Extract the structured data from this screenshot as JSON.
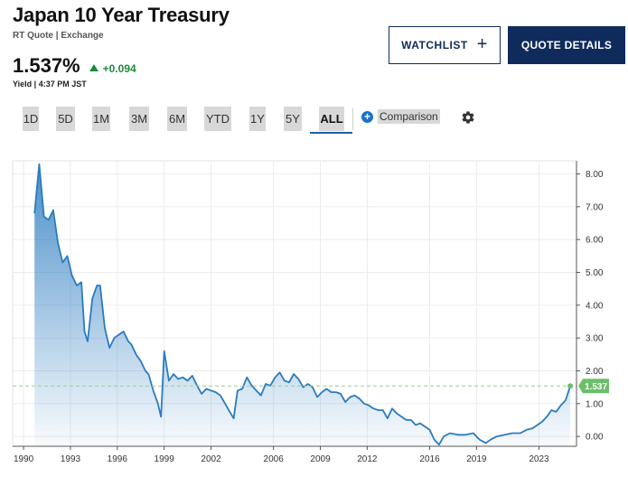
{
  "header": {
    "title": "Japan 10 Year Treasury",
    "meta": "RT Quote | Exchange",
    "price": "1.537%",
    "change": "+0.094",
    "yield_line": "Yield | 4:37 PM JST"
  },
  "actions": {
    "watchlist_label": "WATCHLIST",
    "quote_details_label": "QUOTE DETAILS"
  },
  "ranges": [
    {
      "label": "1D",
      "active": false
    },
    {
      "label": "5D",
      "active": false
    },
    {
      "label": "1M",
      "active": false
    },
    {
      "label": "3M",
      "active": false
    },
    {
      "label": "6M",
      "active": false
    },
    {
      "label": "YTD",
      "active": false
    },
    {
      "label": "1Y",
      "active": false
    },
    {
      "label": "5Y",
      "active": false
    },
    {
      "label": "ALL",
      "active": true
    }
  ],
  "comparison_label": "Comparison",
  "colors": {
    "line": "#2a7bc0",
    "accent_navy": "#0f2b5b",
    "positive": "#1e8a3c",
    "last_value": "#6cbf6a"
  },
  "chart_data": {
    "type": "area",
    "title": "",
    "xlabel": "",
    "ylabel": "",
    "x_ticks": [
      "1990",
      "1993",
      "1996",
      "1999",
      "2002",
      "2006",
      "2009",
      "2012",
      "2016",
      "2019",
      "2023"
    ],
    "y_ticks": [
      "8.00",
      "7.00",
      "6.00",
      "5.00",
      "4.00",
      "3.00",
      "2.00",
      "1.00",
      "0.00"
    ],
    "ylim": [
      -0.3,
      8.4
    ],
    "xlim": [
      1989.3,
      2025.4
    ],
    "last_value_label": "1.537",
    "last_value": 1.537,
    "series": [
      {
        "x": [
          1990.7,
          1991.0,
          1991.3,
          1991.6,
          1991.9,
          1992.2,
          1992.5,
          1992.8,
          1993.1,
          1993.4,
          1993.7,
          1993.9,
          1994.1,
          1994.4,
          1994.7,
          1994.9,
          1995.2,
          1995.5,
          1995.8,
          1996.1,
          1996.4,
          1996.7,
          1996.9,
          1997.2,
          1997.5,
          1997.8,
          1998.0,
          1998.3,
          1998.6,
          1998.8,
          1999.0,
          1999.3,
          1999.6,
          1999.9,
          2000.2,
          2000.5,
          2000.8,
          2001.1,
          2001.4,
          2001.7,
          2002.0,
          2002.3,
          2002.6,
          2002.9,
          2003.2,
          2003.45,
          2003.7,
          2004.0,
          2004.3,
          2004.6,
          2004.9,
          2005.2,
          2005.5,
          2005.8,
          2006.1,
          2006.4,
          2006.7,
          2007.0,
          2007.3,
          2007.6,
          2007.9,
          2008.2,
          2008.5,
          2008.8,
          2009.1,
          2009.4,
          2009.7,
          2010.0,
          2010.3,
          2010.6,
          2010.9,
          2011.2,
          2011.5,
          2011.8,
          2012.1,
          2012.4,
          2012.7,
          2013.0,
          2013.3,
          2013.6,
          2013.9,
          2014.2,
          2014.5,
          2014.8,
          2015.1,
          2015.4,
          2015.7,
          2016.0,
          2016.3,
          2016.6,
          2016.9,
          2017.3,
          2017.8,
          2018.3,
          2018.8,
          2019.2,
          2019.6,
          2019.9,
          2020.3,
          2020.8,
          2021.3,
          2021.8,
          2022.2,
          2022.6,
          2022.9,
          2023.2,
          2023.5,
          2023.8,
          2024.1,
          2024.4,
          2024.7,
          2025.0
        ],
        "y": [
          6.8,
          8.3,
          6.7,
          6.6,
          6.9,
          5.9,
          5.3,
          5.5,
          4.9,
          4.6,
          4.7,
          3.2,
          2.9,
          4.2,
          4.6,
          4.6,
          3.3,
          2.7,
          3.0,
          3.1,
          3.2,
          2.9,
          2.8,
          2.5,
          2.3,
          2.0,
          1.9,
          1.4,
          1.0,
          0.6,
          2.6,
          1.7,
          1.9,
          1.75,
          1.8,
          1.7,
          1.85,
          1.55,
          1.3,
          1.45,
          1.4,
          1.35,
          1.25,
          1.0,
          0.75,
          0.55,
          1.4,
          1.45,
          1.8,
          1.55,
          1.4,
          1.25,
          1.6,
          1.55,
          1.8,
          1.95,
          1.7,
          1.65,
          1.9,
          1.75,
          1.5,
          1.6,
          1.5,
          1.2,
          1.35,
          1.45,
          1.35,
          1.35,
          1.3,
          1.05,
          1.2,
          1.25,
          1.15,
          1.0,
          0.95,
          0.85,
          0.8,
          0.8,
          0.55,
          0.85,
          0.7,
          0.6,
          0.5,
          0.5,
          0.35,
          0.4,
          0.3,
          0.2,
          -0.1,
          -0.25,
          0.0,
          0.1,
          0.05,
          0.05,
          0.1,
          -0.1,
          -0.2,
          -0.1,
          0.0,
          0.05,
          0.1,
          0.1,
          0.2,
          0.25,
          0.35,
          0.45,
          0.6,
          0.8,
          0.75,
          0.95,
          1.1,
          1.537
        ]
      }
    ]
  }
}
